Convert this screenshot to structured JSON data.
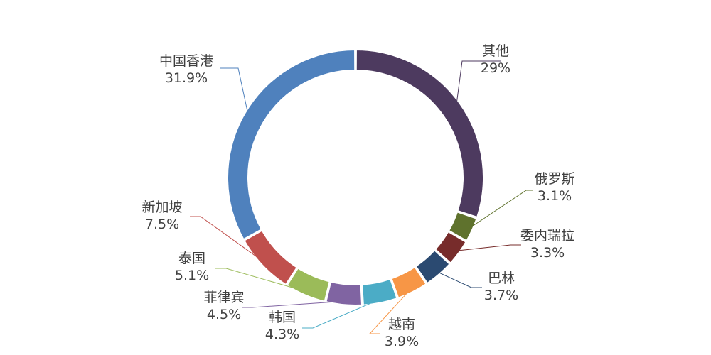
{
  "chart_data": {
    "type": "pie",
    "variant": "donut",
    "title": "",
    "legend": "none",
    "slices": [
      {
        "name": "其他",
        "value": 29,
        "label": "29%",
        "color": "#4d3a5f"
      },
      {
        "name": "俄罗斯",
        "value": 3.1,
        "label": "3.1%",
        "color": "#5f722d"
      },
      {
        "name": "委内瑞拉",
        "value": 3.3,
        "label": "3.3%",
        "color": "#772c2b"
      },
      {
        "name": "巴林",
        "value": 3.7,
        "label": "3.7%",
        "color": "#2b4a71"
      },
      {
        "name": "越南",
        "value": 3.9,
        "label": "3.9%",
        "color": "#f79646"
      },
      {
        "name": "韩国",
        "value": 4.3,
        "label": "4.3%",
        "color": "#4bacc6"
      },
      {
        "name": "菲律宾",
        "value": 4.5,
        "label": "4.5%",
        "color": "#8064a2"
      },
      {
        "name": "泰国",
        "value": 5.1,
        "label": "5.1%",
        "color": "#9bbb59"
      },
      {
        "name": "新加坡",
        "value": 7.5,
        "label": "7.5%",
        "color": "#c0504d"
      },
      {
        "name": "中国香港",
        "value": 31.9,
        "label": "31.9%",
        "color": "#4f81bd"
      }
    ]
  }
}
